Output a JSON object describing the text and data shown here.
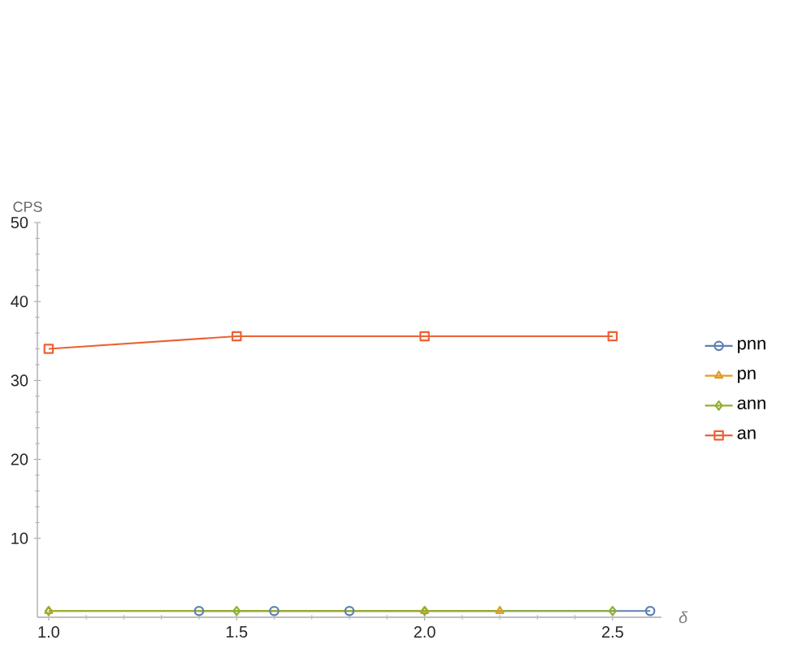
{
  "chart_data": {
    "type": "line",
    "xlabel": "δ",
    "ylabel": "CPS",
    "xlim": [
      0.97,
      2.63
    ],
    "ylim": [
      0,
      50
    ],
    "xticks": [
      {
        "value": 1,
        "label": "1.0"
      },
      1.5,
      {
        "value": 2,
        "label": "2.0"
      },
      2.5
    ],
    "yticks": [
      10,
      20,
      30,
      40,
      50
    ],
    "legend": "right",
    "line_style": "solid",
    "series": [
      {
        "name": "pnn",
        "color": "#5e81b5",
        "marker": "circle",
        "x": [
          1.4,
          1.6,
          1.8,
          2.6
        ],
        "values": [
          0.8,
          0.8,
          0.8,
          0.8
        ]
      },
      {
        "name": "pn",
        "color": "#e19c24",
        "marker": "triangle",
        "x": [
          1.0,
          2.0,
          2.2
        ],
        "values": [
          0.8,
          0.8,
          0.8
        ]
      },
      {
        "name": "ann",
        "color": "#8fb032",
        "marker": "diamond",
        "x": [
          1.0,
          1.5,
          2.0,
          2.5
        ],
        "values": [
          0.8,
          0.8,
          0.8,
          0.8
        ]
      },
      {
        "name": "an",
        "color": "#eb6235",
        "marker": "square",
        "x": [
          1.0,
          1.5,
          2.0,
          2.5
        ],
        "values": [
          34,
          35.6,
          35.6,
          35.6
        ]
      }
    ]
  }
}
